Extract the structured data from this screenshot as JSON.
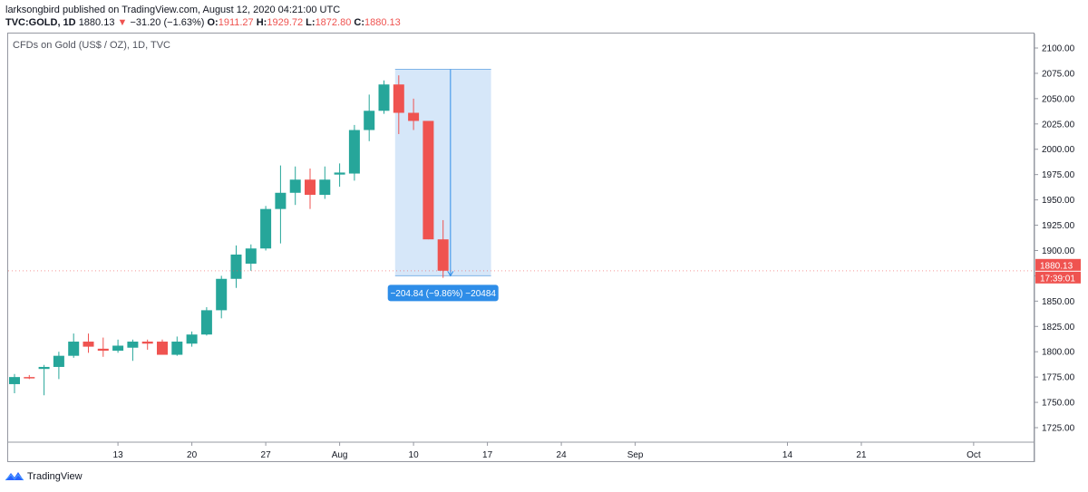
{
  "header": {
    "publish_line": "larksongbird published on TradingView.com, August 12, 2020 04:21:00 UTC",
    "symbol": "TVC:GOLD, 1D",
    "last": "1880.13",
    "change": "−31.20 (−1.63%)",
    "o_label": "O:",
    "o": "1911.27",
    "h_label": "H:",
    "h": "1929.72",
    "l_label": "L:",
    "l": "1872.80",
    "c_label": "C:",
    "c": "1880.13"
  },
  "chart_title": "CFDs on Gold (US$ / OZ), 1D, TVC",
  "footer": {
    "brand": "TradingView"
  },
  "colors": {
    "up": "#26a69a",
    "down": "#ef5350",
    "range_fill": "#cfe3f8",
    "range_label": "#2e8de8"
  },
  "chart_data": {
    "type": "candlestick",
    "title": "CFDs on Gold (US$ / OZ), 1D, TVC",
    "ylim": [
      1725,
      2100
    ],
    "y_ticks": [
      1725,
      1750,
      1775,
      1800,
      1825,
      1850,
      1875,
      1900,
      1925,
      1950,
      1975,
      2000,
      2025,
      2050,
      2075,
      2100
    ],
    "y_tick_labels": [
      "1725.00",
      "1750.00",
      "1775.00",
      "1800.00",
      "1825.00",
      "1850.00",
      "1875.00",
      "1900.00",
      "1925.00",
      "1950.00",
      "1975.00",
      "2000.00",
      "2025.00",
      "2050.00",
      "2075.00",
      "2100.00"
    ],
    "x_tick_labels": [
      {
        "label": "13",
        "bar": 7
      },
      {
        "label": "20",
        "bar": 12
      },
      {
        "label": "27",
        "bar": 17
      },
      {
        "label": "Aug",
        "bar": 22
      },
      {
        "label": "10",
        "bar": 27
      },
      {
        "label": "17",
        "bar": 32
      },
      {
        "label": "24",
        "bar": 37
      },
      {
        "label": "Sep",
        "bar": 42
      },
      {
        "label": "14",
        "bar": 52.3
      },
      {
        "label": "21",
        "bar": 57.3
      },
      {
        "label": "Oct",
        "bar": 64.9
      }
    ],
    "bar_count_visible": 69,
    "candles": [
      {
        "o": 1768,
        "h": 1778,
        "l": 1759,
        "c": 1775
      },
      {
        "o": 1775,
        "h": 1777,
        "l": 1773,
        "c": 1774
      },
      {
        "o": 1783,
        "h": 1787,
        "l": 1757,
        "c": 1785
      },
      {
        "o": 1785,
        "h": 1800,
        "l": 1773,
        "c": 1796
      },
      {
        "o": 1796,
        "h": 1818,
        "l": 1794,
        "c": 1810
      },
      {
        "o": 1810,
        "h": 1818,
        "l": 1799,
        "c": 1805
      },
      {
        "o": 1803,
        "h": 1814,
        "l": 1795,
        "c": 1801
      },
      {
        "o": 1801,
        "h": 1812,
        "l": 1799,
        "c": 1806
      },
      {
        "o": 1804,
        "h": 1812,
        "l": 1791,
        "c": 1810
      },
      {
        "o": 1810,
        "h": 1812,
        "l": 1802,
        "c": 1808
      },
      {
        "o": 1810,
        "h": 1812,
        "l": 1797,
        "c": 1797
      },
      {
        "o": 1797,
        "h": 1815,
        "l": 1796,
        "c": 1810
      },
      {
        "o": 1808,
        "h": 1820,
        "l": 1805,
        "c": 1817
      },
      {
        "o": 1817,
        "h": 1844,
        "l": 1816,
        "c": 1841
      },
      {
        "o": 1841,
        "h": 1875,
        "l": 1833,
        "c": 1872
      },
      {
        "o": 1872,
        "h": 1905,
        "l": 1863,
        "c": 1896
      },
      {
        "o": 1887,
        "h": 1906,
        "l": 1880,
        "c": 1902
      },
      {
        "o": 1902,
        "h": 1944,
        "l": 1900,
        "c": 1941
      },
      {
        "o": 1941,
        "h": 1984,
        "l": 1907,
        "c": 1957
      },
      {
        "o": 1957,
        "h": 1983,
        "l": 1945,
        "c": 1970
      },
      {
        "o": 1970,
        "h": 1981,
        "l": 1941,
        "c": 1955
      },
      {
        "o": 1955,
        "h": 1983,
        "l": 1951,
        "c": 1970
      },
      {
        "o": 1975,
        "h": 1986,
        "l": 1963,
        "c": 1977
      },
      {
        "o": 1976,
        "h": 2024,
        "l": 1969,
        "c": 2019
      },
      {
        "o": 2019,
        "h": 2054,
        "l": 2008,
        "c": 2038
      },
      {
        "o": 2038,
        "h": 2068,
        "l": 2035,
        "c": 2064
      },
      {
        "o": 2064,
        "h": 2073,
        "l": 2015,
        "c": 2036
      },
      {
        "o": 2036,
        "h": 2050,
        "l": 2019,
        "c": 2028
      },
      {
        "o": 2028,
        "h": 2028,
        "l": 1911,
        "c": 1911
      },
      {
        "o": 1911,
        "h": 1930,
        "l": 1873,
        "c": 1880
      }
    ],
    "range": {
      "from_bar": 26,
      "to_bar": 32,
      "top": 2079,
      "bottom": 1875,
      "mid_bar": 29.5,
      "label": "−204.84 (−9.86%) −20484"
    },
    "last_price_label": "1880.13",
    "countdown_label": "17:39:01"
  }
}
